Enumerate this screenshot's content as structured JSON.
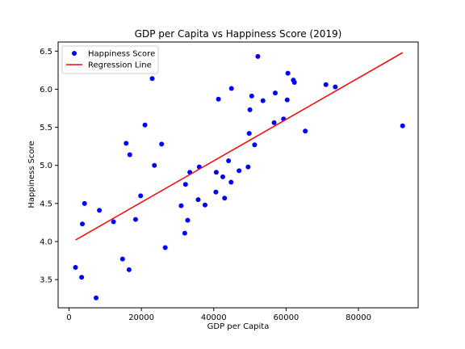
{
  "chart_data": {
    "type": "scatter",
    "title": "GDP per Capita vs Happiness Score (2019)",
    "xlabel": "GDP per Capita",
    "ylabel": "Happiness Score",
    "xlim": [
      -3000,
      96500
    ],
    "ylim": [
      3.13,
      6.62
    ],
    "xticks": [
      0,
      20000,
      40000,
      60000,
      80000
    ],
    "xtick_labels": [
      "0",
      "20000",
      "40000",
      "60000",
      "80000"
    ],
    "yticks": [
      3.5,
      4.0,
      4.5,
      5.0,
      5.5,
      6.0,
      6.5
    ],
    "ytick_labels": [
      "3.5",
      "4.0",
      "4.5",
      "5.0",
      "5.5",
      "6.0",
      "6.5"
    ],
    "grid": false,
    "legend_position": "top-left",
    "series": [
      {
        "name": "Happiness Score",
        "kind": "scatter",
        "color": "#0000ff",
        "points": [
          [
            1800,
            3.66
          ],
          [
            3500,
            3.53
          ],
          [
            3700,
            4.23
          ],
          [
            4300,
            4.5
          ],
          [
            7500,
            3.26
          ],
          [
            8400,
            4.41
          ],
          [
            12300,
            4.26
          ],
          [
            14800,
            3.77
          ],
          [
            15800,
            5.29
          ],
          [
            16600,
            3.63
          ],
          [
            16800,
            5.14
          ],
          [
            18400,
            4.29
          ],
          [
            19800,
            4.6
          ],
          [
            21000,
            5.53
          ],
          [
            23000,
            6.14
          ],
          [
            23600,
            5.0
          ],
          [
            25600,
            5.28
          ],
          [
            26600,
            3.92
          ],
          [
            31000,
            4.47
          ],
          [
            32000,
            4.11
          ],
          [
            32200,
            4.75
          ],
          [
            32800,
            4.28
          ],
          [
            33400,
            4.91
          ],
          [
            35700,
            4.55
          ],
          [
            36000,
            4.98
          ],
          [
            37600,
            4.48
          ],
          [
            40600,
            4.65
          ],
          [
            40700,
            4.91
          ],
          [
            41300,
            5.87
          ],
          [
            42500,
            4.85
          ],
          [
            43000,
            4.57
          ],
          [
            44100,
            5.06
          ],
          [
            44800,
            4.78
          ],
          [
            44900,
            6.01
          ],
          [
            47000,
            4.93
          ],
          [
            49500,
            4.98
          ],
          [
            49800,
            5.42
          ],
          [
            50000,
            5.73
          ],
          [
            50500,
            5.91
          ],
          [
            51300,
            5.27
          ],
          [
            52200,
            6.43
          ],
          [
            53600,
            5.85
          ],
          [
            56700,
            5.56
          ],
          [
            57000,
            5.95
          ],
          [
            59300,
            5.61
          ],
          [
            60300,
            5.86
          ],
          [
            60500,
            6.21
          ],
          [
            62000,
            6.12
          ],
          [
            62300,
            6.09
          ],
          [
            65300,
            5.45
          ],
          [
            71000,
            6.06
          ],
          [
            73600,
            6.03
          ],
          [
            92200,
            5.52
          ]
        ]
      },
      {
        "name": "Regression Line",
        "kind": "line",
        "color": "#ff0000",
        "points": [
          [
            1800,
            4.02
          ],
          [
            92200,
            6.48
          ]
        ]
      }
    ]
  }
}
